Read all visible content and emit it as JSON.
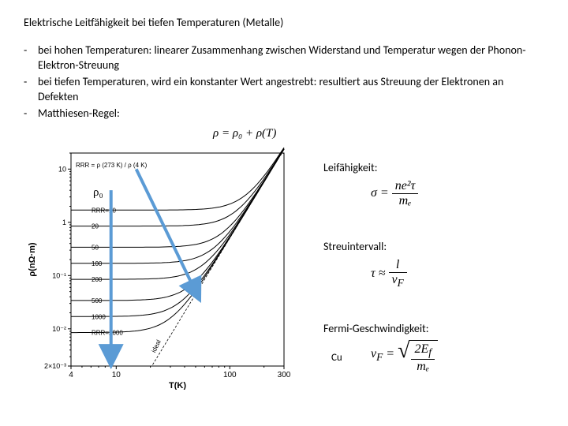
{
  "title": "Elektrische Leitfähigkeit bei tiefen Temperaturen (Metalle)",
  "bullets": [
    "bei hohen Temperaturen: linearer Zusammenhang zwischen Widerstand und Temperatur wegen der Phonon-Elektron-Streuung",
    "bei tiefen Temperaturen, wird ein konstanter Wert angestrebt: resultiert aus Streuung der Elektronen an Defekten",
    "Matthiesen-Regel:"
  ],
  "matthiesen_formula": "ρ = ρ₀ + ρ(T)",
  "right": {
    "conductivity": {
      "label": "Leifähigkeit:",
      "eq_lhs": "σ =",
      "eq_num": "ne²τ",
      "eq_den": "mₑ"
    },
    "interval": {
      "label": "Streuintervall:",
      "eq_lhs": "τ ≈",
      "eq_num": "l",
      "eq_den": "v",
      "eq_den_sub": "F"
    },
    "fermi": {
      "label": "Fermi-Geschwindigkeit:",
      "eq_lhs": "v",
      "eq_lhs_sub": "F",
      "eq_mid": " = ",
      "eq_num": "2E",
      "eq_num_sub": "f",
      "eq_den": "mₑ"
    }
  },
  "chart": {
    "xlabel": "T(K)",
    "ylabel": "ρ(nΩ·m)",
    "rrr_label": "RRR = ρ (273 K) / ρ (4 K)",
    "rho0_label": "ρ₀",
    "cu_label": "Cu",
    "x_ticks": [
      4,
      10,
      100,
      300
    ],
    "y_ticks": [
      "2×10⁻³",
      "10⁻²",
      "10⁻¹",
      "1",
      "10"
    ],
    "rrr_values": [
      "RRR=10",
      "20",
      "50",
      "100",
      "200",
      "500",
      "1000",
      "RRR=2000"
    ],
    "xlim": [
      4,
      300
    ],
    "ylim": [
      0.002,
      20
    ],
    "log_x": true,
    "log_y": true,
    "axis_color": "#000000",
    "curve_color": "#000000",
    "arrow_color": "#5b9bd5",
    "background": "#ffffff",
    "curves": [
      {
        "rrr": 10,
        "y0": 1.7
      },
      {
        "rrr": 20,
        "y0": 0.85
      },
      {
        "rrr": 50,
        "y0": 0.34
      },
      {
        "rrr": 100,
        "y0": 0.17
      },
      {
        "rrr": 200,
        "y0": 0.085
      },
      {
        "rrr": 500,
        "y0": 0.034
      },
      {
        "rrr": 1000,
        "y0": 0.017
      },
      {
        "rrr": 2000,
        "y0": 0.0085
      }
    ],
    "high_t_value": 17
  }
}
